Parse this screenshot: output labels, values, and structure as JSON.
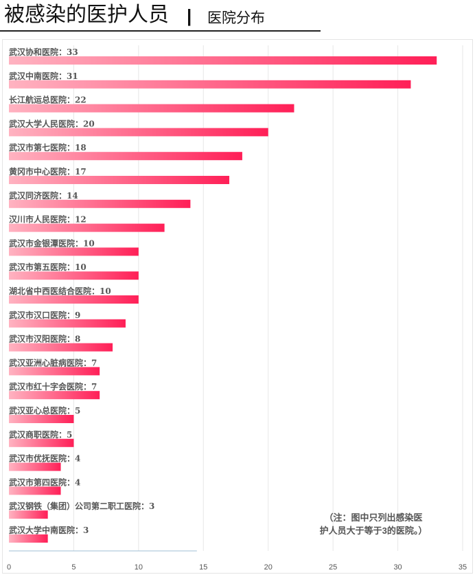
{
  "header": {
    "title": "被感染的医护人员",
    "separator": "|",
    "subtitle": "医院分布"
  },
  "note": {
    "line1": "（注：图中只列出感染医",
    "line2": "护人员大于等于3的医院。）"
  },
  "chart_data": {
    "type": "bar",
    "orientation": "horizontal",
    "categories": [
      "武汉协和医院",
      "武汉中南医院",
      "长江航运总医院",
      "武汉大学人民医院",
      "武汉市第七医院",
      "黄冈市中心医院",
      "武汉同济医院",
      "汉川市人民医院",
      "武汉市金银潭医院",
      "武汉市第五医院",
      "湖北省中西医结合医院",
      "武汉市汉口医院",
      "武汉市汉阳医院",
      "武汉亚洲心脏病医院",
      "武汉市红十字会医院",
      "武汉亚心总医院",
      "武汉商职医院",
      "武汉市优抚医院",
      "武汉市第四医院",
      "武汉钢铁（集团）公司第二职工医院",
      "武汉大学中南医院"
    ],
    "values": [
      33,
      31,
      22,
      20,
      18,
      17,
      14,
      12,
      10,
      10,
      10,
      9,
      8,
      7,
      7,
      5,
      5,
      4,
      4,
      3,
      3
    ],
    "label_separator": "：",
    "xlim": [
      0,
      35
    ],
    "xticks": [
      0,
      5,
      10,
      15,
      20,
      25,
      30,
      35
    ],
    "grid": true,
    "colors": {
      "bar_start": "#ffb3c1",
      "bar_end": "#ff1f57",
      "label": "#555555",
      "grid": "#e6e6e6",
      "baseline": "#9fbfd4"
    }
  }
}
